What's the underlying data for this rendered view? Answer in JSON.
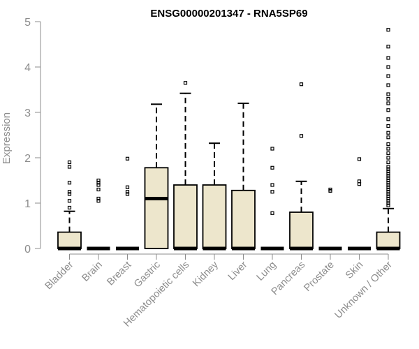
{
  "chart_data": {
    "type": "box",
    "title": "ENSG00000201347 - RNA5SP69",
    "xlabel": "",
    "ylabel": "Expression",
    "ylim": [
      0,
      5
    ],
    "yticks": [
      0,
      1,
      2,
      3,
      4,
      5
    ],
    "grid": false,
    "legend": "none",
    "box_fill": "#ede6cc",
    "categories": [
      "Bladder",
      "Brain",
      "Breast",
      "Gastric",
      "Hematopoietic cells",
      "Kidney",
      "Liver",
      "Lung",
      "Pancreas",
      "Prostate",
      "Skin",
      "Unknown / Other"
    ],
    "boxes": [
      {
        "q1": 0,
        "median": 0,
        "q3": 0.36,
        "whisker_low": 0,
        "whisker_high": 0.82,
        "outliers": [
          0.9,
          1.05,
          1.2,
          1.25,
          1.45,
          1.8,
          1.9
        ]
      },
      {
        "q1": 0,
        "median": 0,
        "q3": 0,
        "whisker_low": 0,
        "whisker_high": 0,
        "outliers": [
          1.05,
          1.1,
          1.3,
          1.4,
          1.45,
          1.5
        ]
      },
      {
        "q1": 0,
        "median": 0,
        "q3": 0,
        "whisker_low": 0,
        "whisker_high": 0,
        "outliers": [
          1.2,
          1.25,
          1.35,
          1.98
        ]
      },
      {
        "q1": 0,
        "median": 1.1,
        "q3": 1.78,
        "whisker_low": 0,
        "whisker_high": 3.18,
        "outliers": []
      },
      {
        "q1": 0,
        "median": 0,
        "q3": 1.4,
        "whisker_low": 0,
        "whisker_high": 3.42,
        "outliers": [
          3.65
        ]
      },
      {
        "q1": 0,
        "median": 0,
        "q3": 1.4,
        "whisker_low": 0,
        "whisker_high": 2.32,
        "outliers": []
      },
      {
        "q1": 0,
        "median": 0,
        "q3": 1.28,
        "whisker_low": 0,
        "whisker_high": 3.2,
        "outliers": []
      },
      {
        "q1": 0,
        "median": 0,
        "q3": 0,
        "whisker_low": 0,
        "whisker_high": 0,
        "outliers": [
          0.78,
          1.25,
          1.4,
          1.78,
          2.2
        ]
      },
      {
        "q1": 0,
        "median": 0,
        "q3": 0.8,
        "whisker_low": 0,
        "whisker_high": 1.48,
        "outliers": [
          2.48,
          3.62
        ]
      },
      {
        "q1": 0,
        "median": 0,
        "q3": 0,
        "whisker_low": 0,
        "whisker_high": 0,
        "outliers": [
          1.27,
          1.3
        ]
      },
      {
        "q1": 0,
        "median": 0,
        "q3": 0,
        "whisker_low": 0,
        "whisker_high": 0,
        "outliers": [
          1.42,
          1.48,
          1.97
        ]
      },
      {
        "q1": 0,
        "median": 0,
        "q3": 0.36,
        "whisker_low": 0,
        "whisker_high": 0.88,
        "outliers": [
          0.95,
          1.0,
          1.05,
          1.1,
          1.15,
          1.2,
          1.25,
          1.3,
          1.35,
          1.4,
          1.45,
          1.5,
          1.55,
          1.6,
          1.65,
          1.7,
          1.75,
          1.8,
          1.9,
          2.0,
          2.1,
          2.2,
          2.3,
          2.45,
          2.55,
          2.7,
          2.85,
          3.05,
          3.2,
          3.3,
          3.4,
          3.6,
          3.8,
          4.0,
          4.2,
          4.45,
          4.82
        ]
      }
    ]
  }
}
